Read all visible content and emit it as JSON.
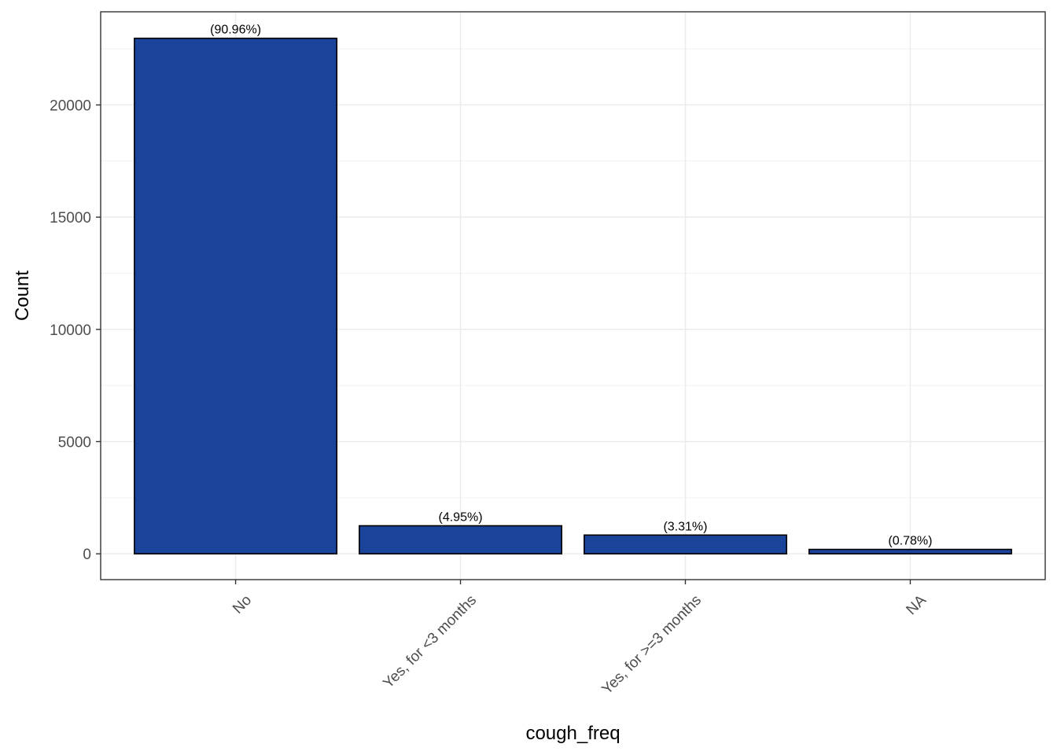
{
  "chart_data": {
    "type": "bar",
    "title": "",
    "xlabel": "cough_freq",
    "ylabel": "Count",
    "categories": [
      "No",
      "Yes, for <3 months",
      "Yes, for >=3 months",
      "NA"
    ],
    "values": [
      22970,
      1250,
      836,
      197
    ],
    "data_labels": [
      "(90.96%)",
      "(4.95%)",
      "(3.31%)",
      "(0.78%)"
    ],
    "yticks": [
      0,
      5000,
      10000,
      15000,
      20000
    ],
    "ytick_labels": [
      "0",
      "5000",
      "10000",
      "15000",
      "20000"
    ],
    "ylim": [
      -1150,
      24150
    ],
    "grid": true,
    "legend": "none",
    "x_tick_rotation_deg": 45,
    "colors": {
      "bar_fill": "#1A4499",
      "bar_stroke": "#000000",
      "grid_major": "#EBEBEB",
      "grid_minor": "#F2F2F2",
      "panel_border": "#333333",
      "tick_text": "#4D4D4D"
    }
  }
}
